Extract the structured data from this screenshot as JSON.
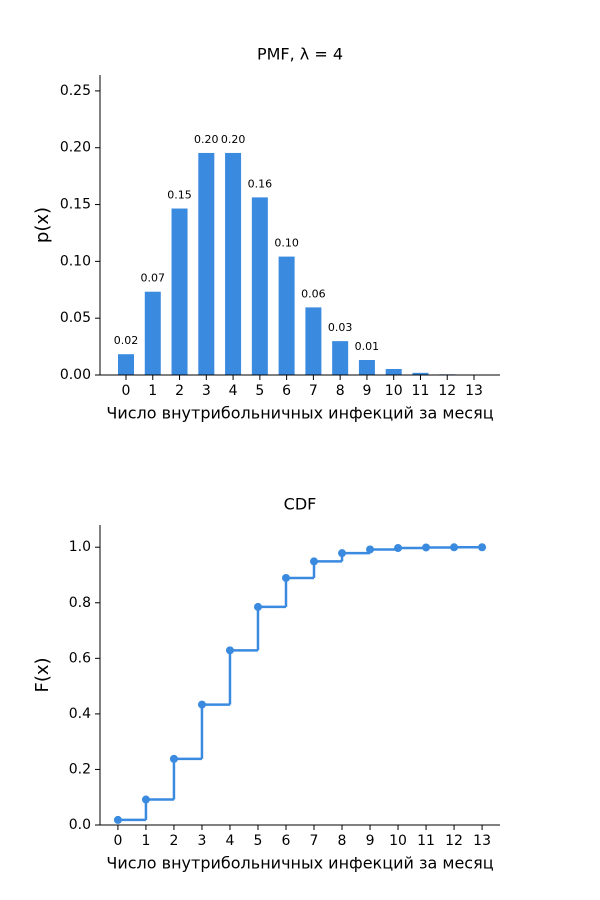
{
  "chart_data": [
    {
      "type": "bar",
      "title": "PMF, λ = 4",
      "x_label": "Число внутрибольничных инфекций за месяц",
      "y_label": "p(x)",
      "categories": [
        "0",
        "1",
        "2",
        "3",
        "4",
        "5",
        "6",
        "7",
        "8",
        "9",
        "10",
        "11",
        "12",
        "13"
      ],
      "values": [
        0.0183,
        0.0733,
        0.1465,
        0.1954,
        0.1954,
        0.1563,
        0.1042,
        0.0595,
        0.0298,
        0.0132,
        0.0053,
        0.0019,
        0.0006,
        0.0002
      ],
      "value_labels": [
        "0.02",
        "0.07",
        "0.15",
        "0.20",
        "0.20",
        "0.16",
        "0.10",
        "0.06",
        "0.03",
        "0.01",
        null,
        null,
        null,
        null
      ],
      "color": "#3a8ae0",
      "ylim": [
        0,
        0.264
      ],
      "yticks": [
        {
          "value": 0,
          "label": "0.00"
        },
        0.05,
        {
          "value": 0.1,
          "label": "0.10"
        },
        0.15,
        {
          "value": 0.2,
          "label": "0.20"
        },
        0.25
      ]
    },
    {
      "type": "step",
      "title": "CDF",
      "x_label": "Число внутрибольничных инфекций за месяц",
      "y_label": "F(x)",
      "x": [
        0,
        1,
        2,
        3,
        4,
        5,
        6,
        7,
        8,
        9,
        10,
        11,
        12,
        13
      ],
      "values": [
        0.0183,
        0.0916,
        0.2381,
        0.4335,
        0.6288,
        0.7851,
        0.8893,
        0.9489,
        0.9786,
        0.9919,
        0.9972,
        0.9991,
        0.9997,
        0.9999
      ],
      "color": "#3a8ae0",
      "xlim": [
        -0.64,
        13.64
      ],
      "xticks": [
        0,
        1,
        2,
        3,
        4,
        5,
        6,
        7,
        8,
        9,
        10,
        11,
        12,
        13
      ],
      "ylim": [
        0,
        1.08
      ],
      "yticks": [
        {
          "value": 0,
          "label": "0.0"
        },
        0.2,
        0.4,
        0.6,
        0.8,
        {
          "value": 1,
          "label": "1.0"
        }
      ]
    }
  ]
}
